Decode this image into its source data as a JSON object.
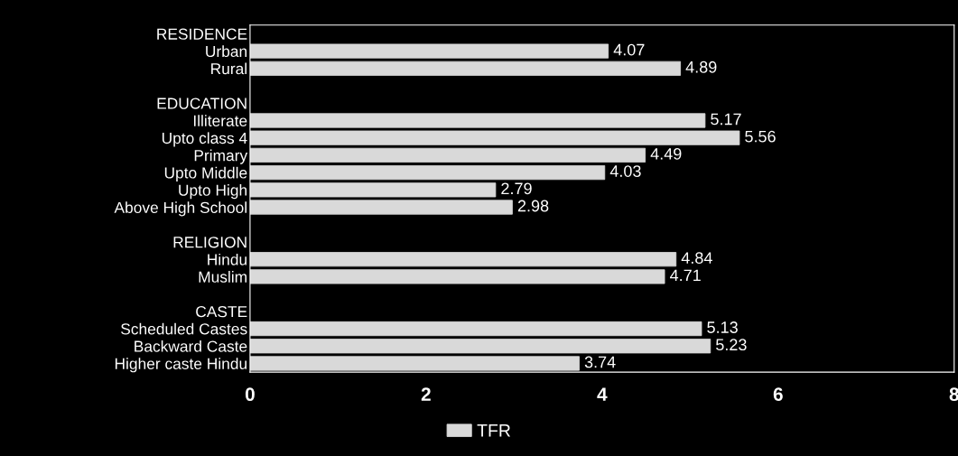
{
  "chart_data": {
    "type": "bar",
    "orientation": "horizontal",
    "categories": [
      "RESIDENCE",
      "Urban",
      "Rural",
      null,
      "EDUCATION",
      "Illiterate",
      "Upto class 4",
      "Primary",
      "Upto Middle",
      "Upto High",
      "Above High School",
      null,
      "RELIGION",
      "Hindu",
      "Muslim",
      null,
      "CASTE",
      "Scheduled Castes",
      "Backward Caste",
      "Higher caste Hindu"
    ],
    "series": [
      {
        "name": "TFR",
        "color": "#d9d9d9",
        "values": [
          null,
          4.07,
          4.89,
          null,
          null,
          5.17,
          5.56,
          4.49,
          4.03,
          2.79,
          2.98,
          null,
          null,
          4.84,
          4.71,
          null,
          null,
          5.13,
          5.23,
          3.74
        ]
      }
    ],
    "xlim": [
      0,
      8
    ],
    "xticks": [
      0,
      2,
      4,
      6,
      8
    ],
    "data_labels": true,
    "legend": "bottom",
    "grid": false
  }
}
